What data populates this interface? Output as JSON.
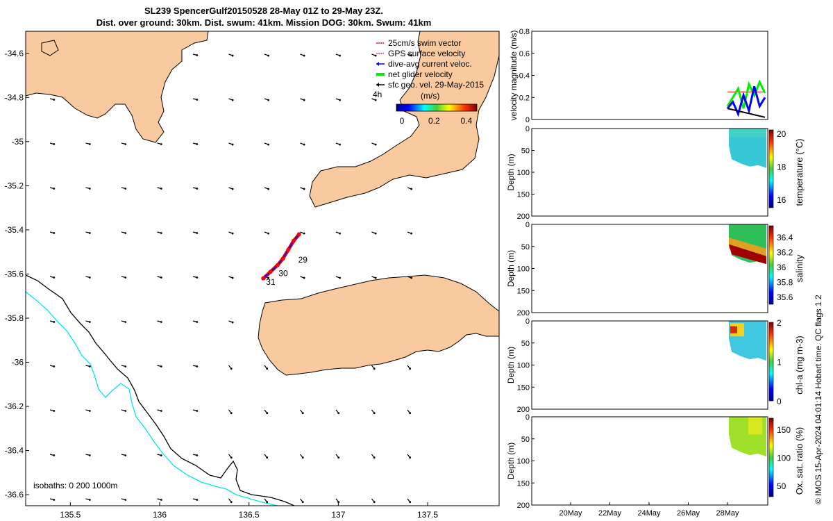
{
  "title_line1": "SL239 SpencerGulf20150528 28-May 01Z to 29-May 23Z.",
  "title_line2": "Dist. over ground: 30km. Dist. swum: 41km. Mission DOG: 30km. Swum: 41km",
  "credit": "© IMOS 15-Apr-2024 04:01:14 Hobart time. QC flags 1  2",
  "colors": {
    "land": "#f9c9a0",
    "isobath_0": "#000000",
    "isobath_200": "#00e5ee",
    "swim_vector": "#ff0000",
    "gps_velocity": "#cc33cc",
    "dive_avg": "#0000ff",
    "net_glider": "#00ee00",
    "sfc_geo": "#000000"
  },
  "map": {
    "legend": [
      {
        "key": "swim",
        "label": "25cm/s swim vector",
        "color": "#ff0000",
        "style": "dot"
      },
      {
        "key": "gps",
        "label": "GPS surface velocity",
        "color": "#cc33cc",
        "style": "dot"
      },
      {
        "key": "dive",
        "label": "dive-avg current veloc.",
        "color": "#0000ff",
        "style": "arrow"
      },
      {
        "key": "net",
        "label": "net glider velocity",
        "color": "#00ee00",
        "style": "thick"
      },
      {
        "key": "sfc",
        "label": "sfc geo. vel. 29-May-2015",
        "color": "#000000",
        "style": "arrow"
      }
    ],
    "colorbar_label": "(m/s)",
    "colorbar_ticks": [
      "0",
      "0.2",
      "0.4"
    ],
    "time_label": "4h",
    "isobaths_label": "isobaths: 0   200  1000m",
    "track_labels": [
      "29",
      "30",
      "31"
    ],
    "x_ticks": [
      "135.5",
      "136",
      "136.5",
      "137",
      "137.5"
    ],
    "y_ticks": [
      "-34.6",
      "-34.8",
      "-35",
      "-35.2",
      "-35.4",
      "-35.6",
      "-35.8",
      "-36",
      "-36.2",
      "-36.4",
      "-36.6"
    ]
  },
  "chart_data": [
    {
      "type": "line",
      "name": "glider track map",
      "xlim": [
        135.25,
        137.9
      ],
      "ylim": [
        -36.65,
        -34.5
      ],
      "x_ticks": [
        135.5,
        136,
        136.5,
        137,
        137.5
      ],
      "y_ticks": [
        -34.6,
        -34.8,
        -35,
        -35.2,
        -35.4,
        -35.6,
        -35.8,
        -36,
        -36.2,
        -36.4,
        -36.6
      ],
      "track": {
        "lon": [
          136.58,
          136.62,
          136.66,
          136.69,
          136.72,
          136.75,
          136.78
        ],
        "lat": [
          -35.62,
          -35.59,
          -35.56,
          -35.53,
          -35.49,
          -35.45,
          -35.42
        ]
      },
      "day_markers": [
        {
          "label": "29",
          "lon": 136.76,
          "lat": -35.53
        },
        {
          "label": "30",
          "lon": 136.65,
          "lat": -35.59
        },
        {
          "label": "31",
          "lon": 136.58,
          "lat": -35.63
        }
      ]
    },
    {
      "type": "line",
      "ylabel": "velocity magnitude (m/s)",
      "ylim": [
        0,
        0.8
      ],
      "y_ticks": [
        0,
        0.2,
        0.4,
        0.6,
        0.8
      ],
      "series": [
        {
          "name": "25cm/s swim vector",
          "values": [
            0.25,
            0.25,
            0.25,
            0.25,
            0.25,
            0.25,
            0.25,
            0.25
          ]
        },
        {
          "name": "net glider velocity",
          "values": [
            0.12,
            0.2,
            0.28,
            0.1,
            0.32,
            0.22,
            0.34,
            0.24
          ]
        },
        {
          "name": "dive-avg current veloc.",
          "values": [
            0.1,
            0.16,
            0.05,
            0.22,
            0.08,
            0.3,
            0.12,
            0.2
          ]
        }
      ]
    },
    {
      "type": "heatmap",
      "colorbar_label": "temperature (°C)",
      "clim": [
        15.5,
        20.2
      ],
      "colorbar_ticks": [
        16,
        18,
        20
      ],
      "ylabel": "Depth (m)",
      "ylim": [
        0,
        200
      ],
      "y_ticks": [
        0,
        50,
        100,
        150,
        200
      ]
    },
    {
      "type": "heatmap",
      "colorbar_label": "salinity",
      "clim": [
        35.5,
        36.55
      ],
      "colorbar_ticks": [
        35.6,
        35.8,
        36,
        36.2,
        36.4
      ],
      "ylabel": "Depth (m)",
      "ylim": [
        0,
        200
      ],
      "y_ticks": [
        0,
        50,
        100,
        150,
        200
      ]
    },
    {
      "type": "heatmap",
      "colorbar_label": "chl-a (mg m-3)",
      "clim": [
        0,
        2
      ],
      "colorbar_ticks": [
        0,
        1,
        2
      ],
      "ylabel": "Depth (m)",
      "ylim": [
        0,
        200
      ],
      "y_ticks": [
        0,
        50,
        100,
        150,
        200
      ]
    },
    {
      "type": "heatmap",
      "colorbar_label": "Ox. sat. ratio (%)",
      "clim": [
        30,
        170
      ],
      "colorbar_ticks": [
        50,
        100,
        150
      ],
      "ylabel": "Depth (m)",
      "ylim": [
        0,
        200
      ],
      "y_ticks": [
        0,
        50,
        100,
        150,
        200
      ],
      "x_ticks": [
        "20May",
        "22May",
        "24May",
        "26May",
        "28May"
      ]
    }
  ]
}
